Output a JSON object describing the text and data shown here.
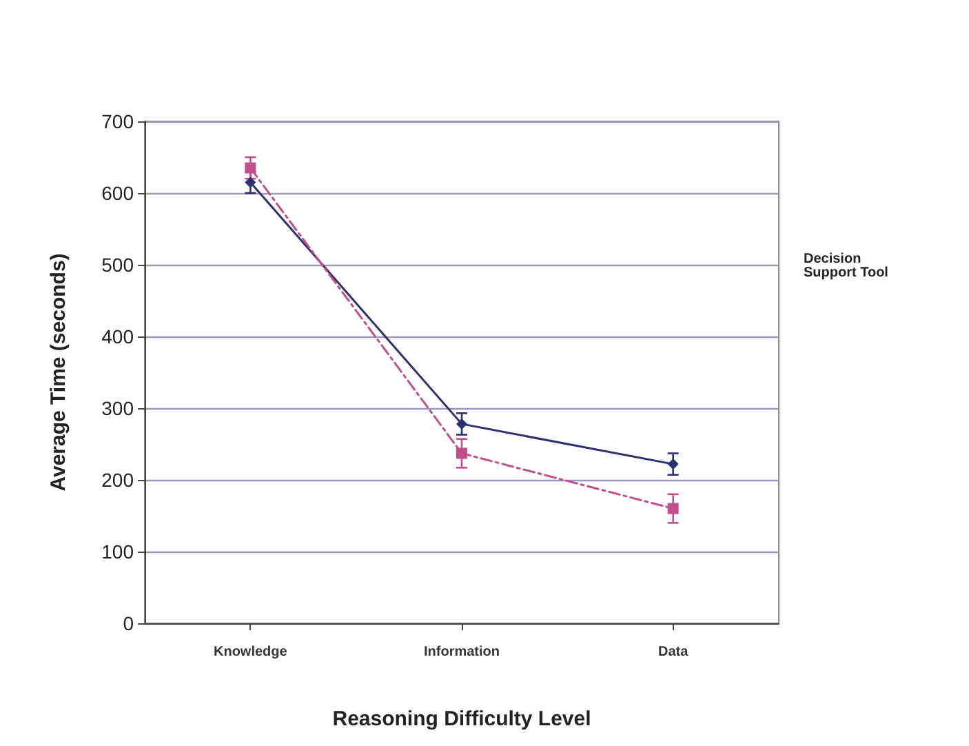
{
  "chart_data": {
    "type": "line",
    "xlabel": "Reasoning Difficulty Level",
    "ylabel": "Average Time (seconds)",
    "legend_title": "Decision Support Tool",
    "categories": [
      "Knowledge",
      "Information",
      "Data"
    ],
    "series": [
      {
        "color": "#2e2f6e",
        "marker": "diamond",
        "line_style": "solid",
        "values": [
          615,
          278,
          222
        ],
        "errors": [
          15,
          15,
          15
        ]
      },
      {
        "color": "#c0508a",
        "marker": "square",
        "line_style": "dashed",
        "values": [
          635,
          237,
          160
        ],
        "errors": [
          15,
          20,
          20
        ]
      }
    ],
    "ylim": [
      0,
      700
    ],
    "yticks": [
      0,
      100,
      200,
      300,
      400,
      500,
      600,
      700
    ],
    "grid": "y"
  }
}
